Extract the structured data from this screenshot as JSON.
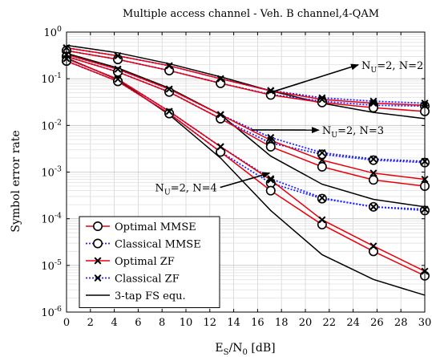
{
  "chart_data": {
    "type": "line",
    "title": "Multiple access channel - Veh. B channel,4-QAM",
    "xlabel": "E_S/N_0 [dB]",
    "ylabel": "Symbol error rate",
    "xlim": [
      0,
      30
    ],
    "ylim": [
      1e-06,
      1
    ],
    "yscale": "log",
    "grid": true,
    "legend_position": "bottom-left",
    "x_ticks": [
      0,
      2,
      4,
      6,
      8,
      10,
      12,
      14,
      16,
      18,
      20,
      22,
      24,
      26,
      28,
      30
    ],
    "y_ticks": [
      {
        "value": 1,
        "label": "10^0"
      },
      {
        "value": 0.1,
        "label": "10^-1"
      },
      {
        "value": 0.01,
        "label": "10^-2"
      },
      {
        "value": 0.001,
        "label": "10^-3"
      },
      {
        "value": 0.0001,
        "label": "10^-4"
      },
      {
        "value": 1e-05,
        "label": "10^-5"
      },
      {
        "value": 1e-06,
        "label": "10^-6"
      }
    ],
    "x": [
      0,
      4.3,
      8.6,
      12.9,
      17.1,
      21.4,
      25.7,
      30
    ],
    "legend": [
      {
        "label": "Optimal MMSE",
        "color": "#e8000b",
        "marker": "circle",
        "dash": false
      },
      {
        "label": "Classical MMSE",
        "color": "#2020ff",
        "marker": "circle",
        "dash": true
      },
      {
        "label": "Optimal ZF",
        "color": "#e8000b",
        "marker": "cross",
        "dash": false
      },
      {
        "label": "Classical ZF",
        "color": "#2020ff",
        "marker": "cross",
        "dash": true
      },
      {
        "label": "3-tap FS equ.",
        "color": "#000000",
        "marker": "none",
        "dash": false
      }
    ],
    "groups": [
      {
        "annotation": "N_U=2, N=2",
        "optimal_mmse": [
          0.4,
          0.26,
          0.15,
          0.08,
          0.045,
          0.031,
          0.024,
          0.02
        ],
        "classical_mmse": [
          0.4,
          0.26,
          0.15,
          0.08,
          0.046,
          0.033,
          0.027,
          0.026
        ],
        "optimal_zf": [
          0.46,
          0.31,
          0.19,
          0.1,
          0.055,
          0.036,
          0.03,
          0.027
        ],
        "classical_zf": [
          0.46,
          0.31,
          0.19,
          0.1,
          0.056,
          0.039,
          0.033,
          0.03
        ],
        "fs_equ": [
          0.52,
          0.36,
          0.21,
          0.11,
          0.055,
          0.03,
          0.019,
          0.014
        ]
      },
      {
        "annotation": "N_U=2, N=3",
        "optimal_mmse": [
          0.3,
          0.14,
          0.052,
          0.014,
          0.0035,
          0.0013,
          0.00068,
          0.0005
        ],
        "classical_mmse": [
          0.3,
          0.14,
          0.052,
          0.014,
          0.0042,
          0.0024,
          0.0018,
          0.0016
        ],
        "optimal_zf": [
          0.33,
          0.16,
          0.06,
          0.017,
          0.0048,
          0.0018,
          0.00095,
          0.0007
        ],
        "classical_zf": [
          0.33,
          0.16,
          0.06,
          0.017,
          0.0055,
          0.0026,
          0.0019,
          0.0017
        ],
        "fs_equ": [
          0.35,
          0.17,
          0.063,
          0.017,
          0.0022,
          0.00055,
          0.00026,
          0.00018
        ]
      },
      {
        "annotation": "N_U=2, N=4",
        "optimal_mmse": [
          0.24,
          0.088,
          0.018,
          0.0027,
          0.0004,
          7.5e-05,
          2e-05,
          6e-06
        ],
        "classical_mmse": [
          0.24,
          0.088,
          0.018,
          0.0027,
          0.00058,
          0.00027,
          0.00018,
          0.00015
        ],
        "optimal_zf": [
          0.27,
          0.098,
          0.02,
          0.0035,
          0.00068,
          9.5e-05,
          2.6e-05,
          7.5e-06
        ],
        "classical_zf": [
          0.27,
          0.098,
          0.02,
          0.0035,
          0.00072,
          0.00028,
          0.00018,
          0.00016
        ],
        "fs_equ": [
          0.28,
          0.095,
          0.017,
          0.002,
          0.00015,
          1.7e-05,
          5e-06,
          2.3e-06
        ]
      }
    ],
    "annotations": [
      {
        "text": "N_U=2, N=2",
        "tip": [
          17.0,
          0.05
        ],
        "label_at": [
          24.7,
          0.17
        ]
      },
      {
        "text": "N_U=2, N=3",
        "tip": [
          15.5,
          0.008
        ],
        "label_at": [
          21.4,
          0.0068
        ]
      },
      {
        "text": "N_U=2, N=4",
        "tip": [
          17.0,
          0.00095
        ],
        "label_at": [
          12.6,
          0.0004
        ]
      }
    ]
  }
}
